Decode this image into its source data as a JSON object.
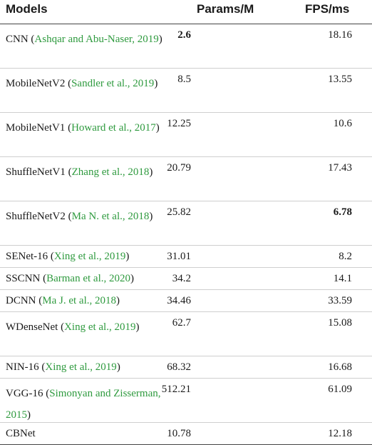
{
  "headers": {
    "models": "Models",
    "params": "Params/M",
    "fps": "FPS/ms"
  },
  "rows": [
    {
      "model": "CNN",
      "cite": "Ashqar and Abu-Naser, 2019",
      "params": "2.6",
      "fps": "18.16",
      "bold_params": true,
      "bold_fps": false
    },
    {
      "model": "MobileNetV2",
      "cite": "Sandler et al., 2019",
      "params": "8.5",
      "fps": "13.55",
      "bold_params": false,
      "bold_fps": false
    },
    {
      "model": "MobileNetV1",
      "cite": "Howard et al., 2017",
      "params": "12.25",
      "fps": "10.6",
      "bold_params": false,
      "bold_fps": false
    },
    {
      "model": "ShuffleNetV1",
      "cite": "Zhang et al., 2018",
      "params": "20.79",
      "fps": "17.43",
      "bold_params": false,
      "bold_fps": false
    },
    {
      "model": "ShuffleNetV2",
      "cite": "Ma N. et al., 2018",
      "params": "25.82",
      "fps": "6.78",
      "bold_params": false,
      "bold_fps": true
    },
    {
      "model": "SENet-16",
      "cite": "Xing et al., 2019",
      "params": "31.01",
      "fps": "8.2",
      "bold_params": false,
      "bold_fps": false
    },
    {
      "model": "SSCNN",
      "cite": "Barman et al., 2020",
      "params": "34.2",
      "fps": "14.1",
      "bold_params": false,
      "bold_fps": false
    },
    {
      "model": "DCNN",
      "cite": "Ma J. et al., 2018",
      "params": "34.46",
      "fps": "33.59",
      "bold_params": false,
      "bold_fps": false
    },
    {
      "model": "WDenseNet",
      "cite": "Xing et al., 2019",
      "params": "62.7",
      "fps": "15.08",
      "bold_params": false,
      "bold_fps": false
    },
    {
      "model": "NIN-16",
      "cite": "Xing et al., 2019",
      "params": "68.32",
      "fps": "16.68",
      "bold_params": false,
      "bold_fps": false
    },
    {
      "model": "VGG-16",
      "cite": "Simonyan and Zisserman, 2015",
      "params": "512.21",
      "fps": "61.09",
      "bold_params": false,
      "bold_fps": false
    },
    {
      "model": "CBNet",
      "cite": "",
      "params": "10.78",
      "fps": "12.18",
      "bold_params": false,
      "bold_fps": false
    }
  ]
}
